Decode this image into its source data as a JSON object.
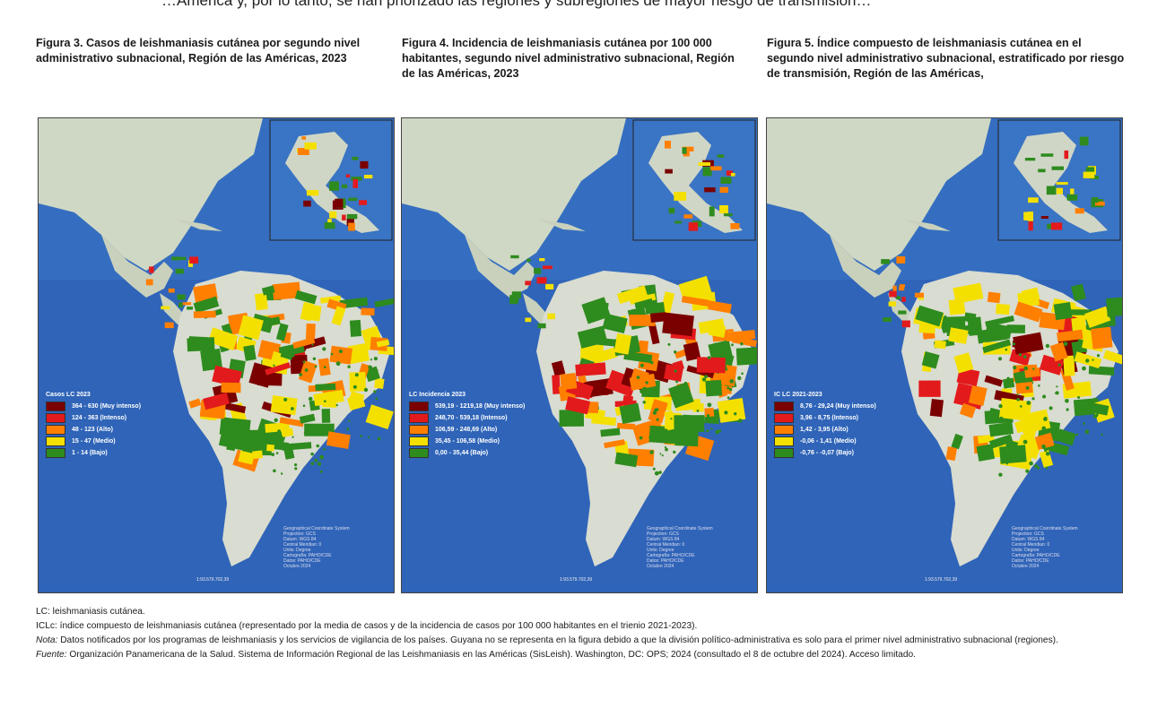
{
  "top_text": "…América y, por lo tanto, se han priorizado las regiones y subregiones de mayor riesgo de transmisión…",
  "figures": [
    {
      "title": "Figura 3. Casos de leishmaniasis cutánea por segundo nivel administrativo subnacional, Región de las Américas, 2023",
      "legend_title": "Casos LC 2023",
      "legend": [
        {
          "label": "364 - 630 (Muy intenso)",
          "color": "#7a0000"
        },
        {
          "label": "124 - 363 (Intenso)",
          "color": "#e31a1c"
        },
        {
          "label": "48 - 123 (Alto)",
          "color": "#ff7f00"
        },
        {
          "label": "15 - 47 (Medio)",
          "color": "#f4e000"
        },
        {
          "label": "1 - 14 (Bajo)",
          "color": "#2e8b1e"
        }
      ]
    },
    {
      "title": "Figura 4. Incidencia de leishmaniasis cutánea por 100 000 habitantes, segundo nivel administrativo subnacional, Región de las Américas, 2023",
      "legend_title": "LC Incidencia 2023",
      "legend": [
        {
          "label": "539,19 - 1219,18 (Muy intenso)",
          "color": "#7a0000"
        },
        {
          "label": "248,70 - 539,18 (Intenso)",
          "color": "#e31a1c"
        },
        {
          "label": "106,59 - 248,69 (Alto)",
          "color": "#ff7f00"
        },
        {
          "label": "35,45 - 106,58 (Medio)",
          "color": "#f4e000"
        },
        {
          "label": "0,00 - 35,44 (Bajo)",
          "color": "#2e8b1e"
        }
      ]
    },
    {
      "title": "Figura 5. Índice compuesto de leishmaniasis cutánea en el segundo nivel administrativo subnacional, estratificado por riesgo de transmisión, Región de las Américas,",
      "legend_title": "IC LC 2021-2023",
      "legend": [
        {
          "label": "8,76 - 29,24 (Muy intenso)",
          "color": "#7a0000"
        },
        {
          "label": "3,96 - 8,75 (Intenso)",
          "color": "#e31a1c"
        },
        {
          "label": "1,42 - 3,95 (Alto)",
          "color": "#ff7f00"
        },
        {
          "label": "-0,06 - 1,41 (Medio)",
          "color": "#f4e000"
        },
        {
          "label": "-0,76 - -0,07 (Bajo)",
          "color": "#2e8b1e"
        }
      ]
    }
  ],
  "map_credit": "Geographical Coordinate System\nProjection: GCS\nDatum: WGS 84\nCentral Meridian: 0\nUnits: Degree\nCartografía: PAHO/CDE\nDatos: PAHO/CDE\nOctubre 2024",
  "scale_text": "1:93.579.702,39",
  "notes": {
    "lc": "LC: leishmaniasis cutánea.",
    "iclc": "ICLc: índice compuesto de leishmaniasis cutánea (representado por la media de casos y de la incidencia de casos por 100 000 habitantes en el trienio 2021-2023).",
    "nota_label": "Nota:",
    "nota": " Datos notificados por los programas de leishmaniasis y los servicios de vigilancia de los países. Guyana no se representa en la figura debido a que la división político-administrativa es solo para el primer nivel administrativo subnacional (regiones).",
    "fuente_label": "Fuente:",
    "fuente": " Organización Panamericana de la Salud. Sistema de Información Regional de las Leishmaniasis en las Américas (SisLeish). Washington, DC: OPS; 2024 (consultado el 8 de octubre del 2024). Acceso limitado."
  }
}
